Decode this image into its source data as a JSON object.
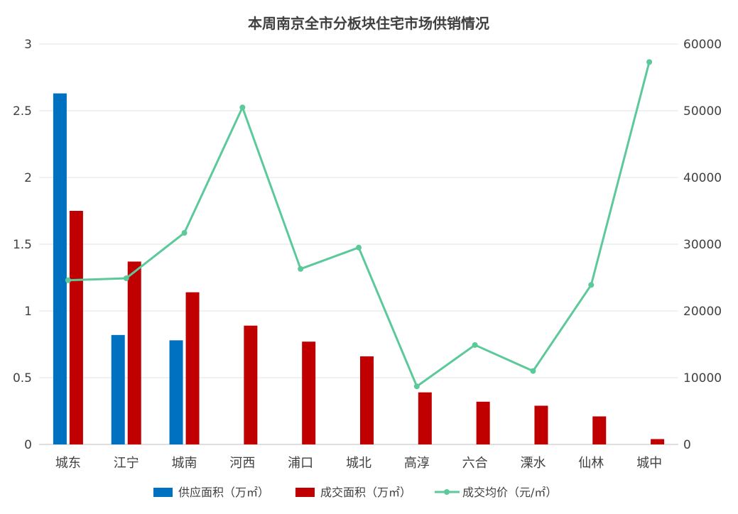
{
  "chart_data": {
    "type": "bar",
    "title": "本周南京全市分板块住宅市场供销情况",
    "categories": [
      "城东",
      "江宁",
      "城南",
      "河西",
      "浦口",
      "城北",
      "高淳",
      "六合",
      "溧水",
      "仙林",
      "城中"
    ],
    "series": [
      {
        "name": "供应面积（万㎡）",
        "type": "bar",
        "axis": "left",
        "color": "#0070C0",
        "values": [
          2.63,
          0.82,
          0.78,
          null,
          null,
          null,
          null,
          null,
          null,
          null,
          null
        ]
      },
      {
        "name": "成交面积（万㎡）",
        "type": "bar",
        "axis": "left",
        "color": "#C00000",
        "values": [
          1.75,
          1.37,
          1.14,
          0.89,
          0.77,
          0.66,
          0.39,
          0.32,
          0.29,
          0.21,
          0.04
        ]
      },
      {
        "name": "成交均价（元/㎡）",
        "type": "line",
        "axis": "right",
        "color": "#5BC99A",
        "values": [
          24600,
          24900,
          31700,
          50500,
          26300,
          29500,
          8700,
          14900,
          11000,
          23900,
          57300
        ]
      }
    ],
    "y_left": {
      "min": 0,
      "max": 3,
      "ticks": [
        "0",
        "0.5",
        "1",
        "1.5",
        "2",
        "2.5",
        "3"
      ],
      "tick_values": [
        0,
        0.5,
        1,
        1.5,
        2,
        2.5,
        3
      ]
    },
    "y_right": {
      "min": 0,
      "max": 60000,
      "ticks": [
        "0",
        "10000",
        "20000",
        "30000",
        "40000",
        "50000",
        "60000"
      ],
      "tick_values": [
        0,
        10000,
        20000,
        30000,
        40000,
        50000,
        60000
      ]
    },
    "grid": true,
    "legend": "bottom"
  }
}
